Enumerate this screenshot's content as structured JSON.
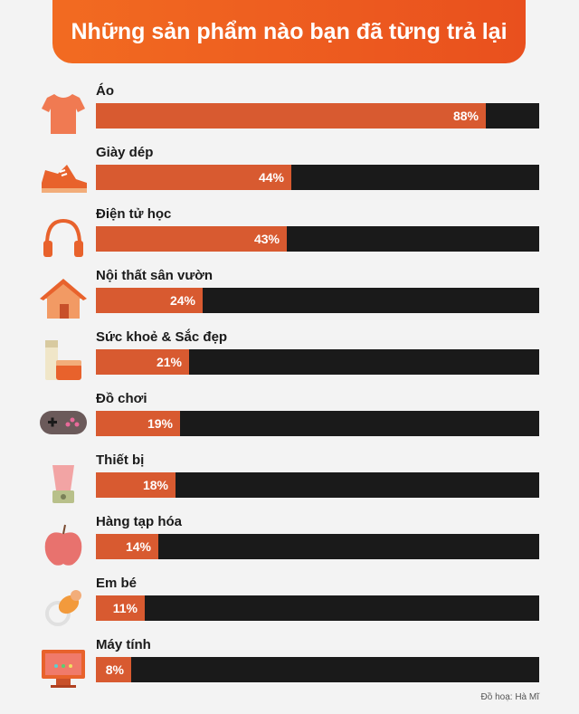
{
  "title": "Những sản phẩm nào bạn đã từng trả lại",
  "credit": "Đồ hoạ: Hà Mĩ",
  "colors": {
    "accent": "#d85a30",
    "track": "#1a1a1a",
    "banner": "#f26b21"
  },
  "chart_data": {
    "type": "bar",
    "orientation": "horizontal",
    "title": "Những sản phẩm nào bạn đã từng trả lại",
    "categories": [
      "Áo",
      "Giày dép",
      "Điện tử học",
      "Nội thất sân vườn",
      "Sức khoẻ & Sắc đẹp",
      "Đồ chơi",
      "Thiết bị",
      "Hàng tạp hóa",
      "Em bé",
      "Máy tính"
    ],
    "values": [
      88,
      44,
      43,
      24,
      21,
      19,
      18,
      14,
      11,
      8
    ],
    "value_labels": [
      "88%",
      "44%",
      "43%",
      "24%",
      "21%",
      "19%",
      "18%",
      "14%",
      "11%",
      "8%"
    ],
    "icons": [
      "shirt-icon",
      "sneaker-icon",
      "headphones-icon",
      "house-icon",
      "cosmetics-icon",
      "gamepad-icon",
      "blender-icon",
      "apple-icon",
      "pacifier-icon",
      "computer-icon"
    ],
    "xlim": [
      0,
      100
    ],
    "grid": false,
    "legend": "none"
  }
}
